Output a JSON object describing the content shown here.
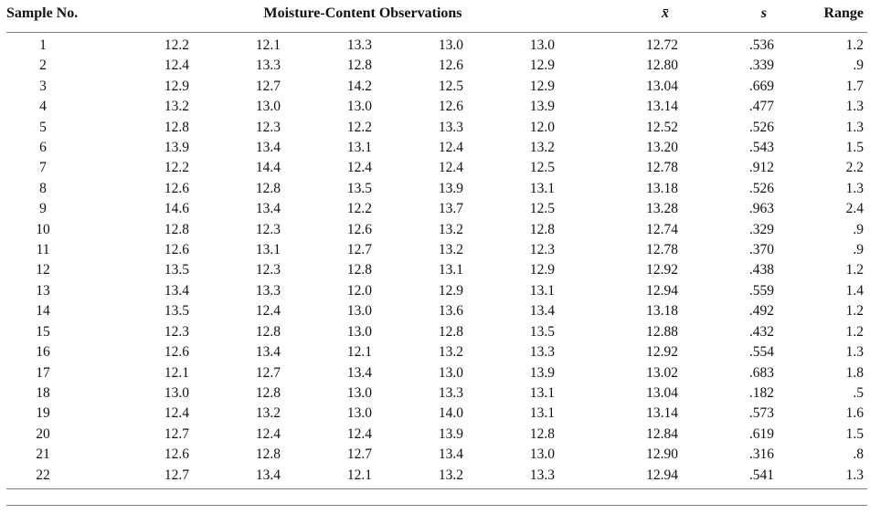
{
  "table": {
    "headers": {
      "sample_no": "Sample No.",
      "observations": "Moisture-Content Observations",
      "mean": "x̄",
      "stddev": "s",
      "range": "Range"
    },
    "rows": [
      {
        "sample": "1",
        "obs": [
          "12.2",
          "12.1",
          "13.3",
          "13.0",
          "13.0"
        ],
        "mean": "12.72",
        "stddev": ".536",
        "range": "1.2"
      },
      {
        "sample": "2",
        "obs": [
          "12.4",
          "13.3",
          "12.8",
          "12.6",
          "12.9"
        ],
        "mean": "12.80",
        "stddev": ".339",
        "range": ".9"
      },
      {
        "sample": "3",
        "obs": [
          "12.9",
          "12.7",
          "14.2",
          "12.5",
          "12.9"
        ],
        "mean": "13.04",
        "stddev": ".669",
        "range": "1.7"
      },
      {
        "sample": "4",
        "obs": [
          "13.2",
          "13.0",
          "13.0",
          "12.6",
          "13.9"
        ],
        "mean": "13.14",
        "stddev": ".477",
        "range": "1.3"
      },
      {
        "sample": "5",
        "obs": [
          "12.8",
          "12.3",
          "12.2",
          "13.3",
          "12.0"
        ],
        "mean": "12.52",
        "stddev": ".526",
        "range": "1.3"
      },
      {
        "sample": "6",
        "obs": [
          "13.9",
          "13.4",
          "13.1",
          "12.4",
          "13.2"
        ],
        "mean": "13.20",
        "stddev": ".543",
        "range": "1.5"
      },
      {
        "sample": "7",
        "obs": [
          "12.2",
          "14.4",
          "12.4",
          "12.4",
          "12.5"
        ],
        "mean": "12.78",
        "stddev": ".912",
        "range": "2.2"
      },
      {
        "sample": "8",
        "obs": [
          "12.6",
          "12.8",
          "13.5",
          "13.9",
          "13.1"
        ],
        "mean": "13.18",
        "stddev": ".526",
        "range": "1.3"
      },
      {
        "sample": "9",
        "obs": [
          "14.6",
          "13.4",
          "12.2",
          "13.7",
          "12.5"
        ],
        "mean": "13.28",
        "stddev": ".963",
        "range": "2.4"
      },
      {
        "sample": "10",
        "obs": [
          "12.8",
          "12.3",
          "12.6",
          "13.2",
          "12.8"
        ],
        "mean": "12.74",
        "stddev": ".329",
        "range": ".9"
      },
      {
        "sample": "11",
        "obs": [
          "12.6",
          "13.1",
          "12.7",
          "13.2",
          "12.3"
        ],
        "mean": "12.78",
        "stddev": ".370",
        "range": ".9"
      },
      {
        "sample": "12",
        "obs": [
          "13.5",
          "12.3",
          "12.8",
          "13.1",
          "12.9"
        ],
        "mean": "12.92",
        "stddev": ".438",
        "range": "1.2"
      },
      {
        "sample": "13",
        "obs": [
          "13.4",
          "13.3",
          "12.0",
          "12.9",
          "13.1"
        ],
        "mean": "12.94",
        "stddev": ".559",
        "range": "1.4"
      },
      {
        "sample": "14",
        "obs": [
          "13.5",
          "12.4",
          "13.0",
          "13.6",
          "13.4"
        ],
        "mean": "13.18",
        "stddev": ".492",
        "range": "1.2"
      },
      {
        "sample": "15",
        "obs": [
          "12.3",
          "12.8",
          "13.0",
          "12.8",
          "13.5"
        ],
        "mean": "12.88",
        "stddev": ".432",
        "range": "1.2"
      },
      {
        "sample": "16",
        "obs": [
          "12.6",
          "13.4",
          "12.1",
          "13.2",
          "13.3"
        ],
        "mean": "12.92",
        "stddev": ".554",
        "range": "1.3"
      },
      {
        "sample": "17",
        "obs": [
          "12.1",
          "12.7",
          "13.4",
          "13.0",
          "13.9"
        ],
        "mean": "13.02",
        "stddev": ".683",
        "range": "1.8"
      },
      {
        "sample": "18",
        "obs": [
          "13.0",
          "12.8",
          "13.0",
          "13.3",
          "13.1"
        ],
        "mean": "13.04",
        "stddev": ".182",
        "range": ".5"
      },
      {
        "sample": "19",
        "obs": [
          "12.4",
          "13.2",
          "13.0",
          "14.0",
          "13.1"
        ],
        "mean": "13.14",
        "stddev": ".573",
        "range": "1.6"
      },
      {
        "sample": "20",
        "obs": [
          "12.7",
          "12.4",
          "12.4",
          "13.9",
          "12.8"
        ],
        "mean": "12.84",
        "stddev": ".619",
        "range": "1.5"
      },
      {
        "sample": "21",
        "obs": [
          "12.6",
          "12.8",
          "12.7",
          "13.4",
          "13.0"
        ],
        "mean": "12.90",
        "stddev": ".316",
        "range": ".8"
      },
      {
        "sample": "22",
        "obs": [
          "12.7",
          "13.4",
          "12.1",
          "13.2",
          "13.3"
        ],
        "mean": "12.94",
        "stddev": ".541",
        "range": "1.3"
      }
    ]
  },
  "colors": {
    "rule": "#3598ad",
    "text": "#111111",
    "background": "#ffffff"
  }
}
